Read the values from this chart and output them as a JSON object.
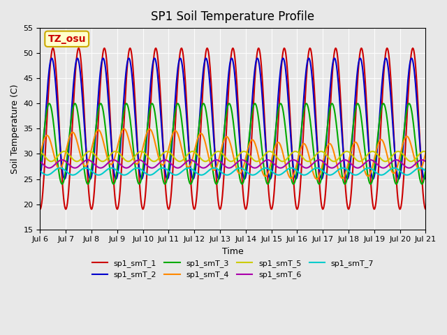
{
  "title": "SP1 Soil Temperature Profile",
  "xlabel": "Time",
  "ylabel": "Soil Temperature (C)",
  "ylim": [
    15,
    55
  ],
  "annotation_text": "TZ_osu",
  "annotation_bbox": {
    "boxstyle": "round,pad=0.3",
    "facecolor": "#FFFFCC",
    "edgecolor": "#CCAA00"
  },
  "annotation_color": "#CC0000",
  "bg_color": "#E8E8E8",
  "plot_bg_color": "#E8E8E8",
  "series": [
    {
      "label": "sp1_smT_1",
      "color": "#CC0000",
      "lw": 1.5
    },
    {
      "label": "sp1_smT_2",
      "color": "#0000CC",
      "lw": 1.5
    },
    {
      "label": "sp1_smT_3",
      "color": "#00AA00",
      "lw": 1.5
    },
    {
      "label": "sp1_smT_4",
      "color": "#FF8800",
      "lw": 1.5
    },
    {
      "label": "sp1_smT_5",
      "color": "#CCCC00",
      "lw": 1.5
    },
    {
      "label": "sp1_smT_6",
      "color": "#AA00AA",
      "lw": 1.5
    },
    {
      "label": "sp1_smT_7",
      "color": "#00CCCC",
      "lw": 1.5
    }
  ],
  "xtick_labels": [
    "Jul 6",
    "Jul 7",
    "Jul 8",
    "Jul 9",
    "Jul 10",
    "Jul 11",
    "Jul 12",
    "Jul 13",
    "Jul 14",
    "Jul 15",
    "Jul 16",
    "Jul 17",
    "Jul 18",
    "Jul 19",
    "Jul 20",
    "Jul 21"
  ],
  "ytick_values": [
    15,
    20,
    25,
    30,
    35,
    40,
    45,
    50,
    55
  ]
}
